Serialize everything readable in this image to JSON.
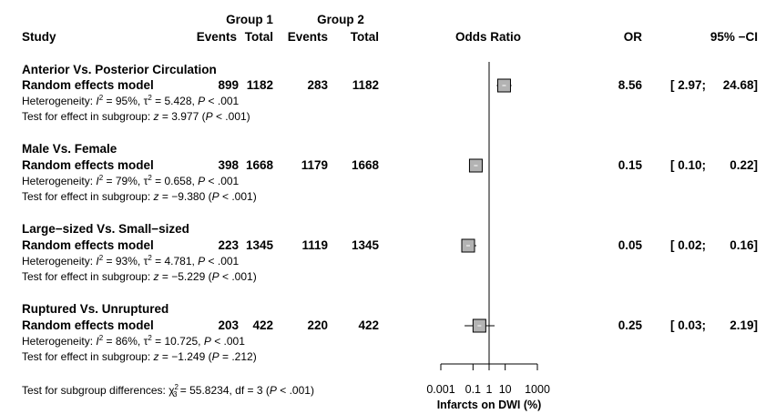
{
  "header": {
    "group1": "Group 1",
    "group2": "Group 2",
    "study": "Study",
    "events1": "Events",
    "total1": "Total",
    "events2": "Events",
    "total2": "Total",
    "odds_ratio": "Odds Ratio",
    "or": "OR",
    "ci": "95% −CI"
  },
  "rows": [
    {
      "title": "Anterior Vs. Posterior Circulation",
      "model": "Random effects model",
      "events1": "899",
      "total1": "1182",
      "events2": "283",
      "total2": "1182",
      "or": "8.56",
      "ci_low": "[ 2.97;",
      "ci_high": "24.68]",
      "het_i2": "95%",
      "het_tau2": "5.428",
      "het_p": ".001",
      "test_z": "3.977",
      "test_p": "< .001"
    },
    {
      "title": "Male Vs. Female",
      "model": "Random effects model",
      "events1": "398",
      "total1": "1668",
      "events2": "1179",
      "total2": "1668",
      "or": "0.15",
      "ci_low": "[ 0.10;",
      "ci_high": "0.22]",
      "het_i2": "79%",
      "het_tau2": "0.658",
      "het_p": ".001",
      "test_z": "−9.380",
      "test_p": "< .001"
    },
    {
      "title": "Large−sized Vs. Small−sized",
      "model": "Random effects model",
      "events1": "223",
      "total1": "1345",
      "events2": "1119",
      "total2": "1345",
      "or": "0.05",
      "ci_low": "[ 0.02;",
      "ci_high": "0.16]",
      "het_i2": "93%",
      "het_tau2": "4.781",
      "het_p": ".001",
      "test_z": "−5.229",
      "test_p": "< .001"
    },
    {
      "title": "Ruptured Vs. Unruptured",
      "model": "Random effects model",
      "events1": "203",
      "total1": "422",
      "events2": "220",
      "total2": "422",
      "or": "0.25",
      "ci_low": "[ 0.03;",
      "ci_high": "2.19]",
      "het_i2": "86%",
      "het_tau2": "10.725",
      "het_p": ".001",
      "test_z": "−1.249",
      "test_p": "= .212"
    }
  ],
  "labels": {
    "heterogeneity": "Heterogeneity:",
    "test_effect": "Test for effect in subgroup:",
    "subgroup_diff": "Test for subgroup differences:",
    "chi_sub": "3",
    "chi_val": "55.8234",
    "df": "3",
    "diff_p": ".001"
  },
  "chart_data": {
    "type": "forest",
    "xlabel": "Infarcts on DWI (%)",
    "x_scale": "log10",
    "reference_line": 1,
    "xticks": [
      0.001,
      0.1,
      1,
      10,
      1000
    ],
    "xtick_labels": [
      "0.001",
      "0.1",
      "1",
      "10",
      "1000"
    ],
    "xlim": [
      0.001,
      1000
    ],
    "points": [
      {
        "label": "Anterior Vs. Posterior Circulation",
        "or": 8.56,
        "lo": 2.97,
        "hi": 24.68
      },
      {
        "label": "Male Vs. Female",
        "or": 0.15,
        "lo": 0.1,
        "hi": 0.22
      },
      {
        "label": "Large−sized Vs. Small−sized",
        "or": 0.05,
        "lo": 0.02,
        "hi": 0.16
      },
      {
        "label": "Ruptured Vs. Unruptured",
        "or": 0.25,
        "lo": 0.03,
        "hi": 2.19
      }
    ],
    "marker_fill": "#b3b3b3",
    "marker_stroke": "#000000"
  }
}
